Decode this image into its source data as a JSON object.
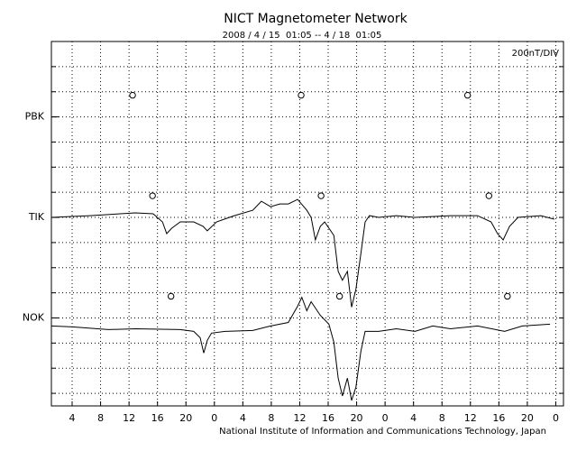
{
  "chart_data": {
    "type": "stacked-traces",
    "title": "NICT Magnetometer Network",
    "subtitle": "2008 / 4 / 15  01:05 -- 4 / 18  01:05",
    "scale_label": "200nT/DIV",
    "footer": "National Institute of Information and Communications Technology, Japan",
    "xlim": [
      1.083,
      73.083
    ],
    "xticks": [
      4,
      8,
      12,
      16,
      20,
      {
        "value": 24,
        "label": "0"
      },
      {
        "value": 28,
        "label": "4"
      },
      {
        "value": 32,
        "label": "8"
      },
      {
        "value": 36,
        "label": "12"
      },
      {
        "value": 40,
        "label": "16"
      },
      {
        "value": 44,
        "label": "20"
      },
      {
        "value": 48,
        "label": "0"
      },
      {
        "value": 52,
        "label": "4"
      },
      {
        "value": 56,
        "label": "8"
      },
      {
        "value": 60,
        "label": "12"
      },
      {
        "value": 64,
        "label": "16"
      },
      {
        "value": 68,
        "label": "20"
      },
      {
        "value": 72,
        "label": "0"
      }
    ],
    "ylim": [
      -700,
      2200
    ],
    "ygrid": [
      -600,
      -400,
      -200,
      0,
      200,
      400,
      600,
      800,
      1000,
      1200,
      1400,
      1600,
      1800,
      2000
    ],
    "grid": true,
    "color": "#000000",
    "series": [
      {
        "name": "PBK",
        "offset": 1600,
        "markers": [
          12.5,
          36.2,
          59.6
        ]
      },
      {
        "name": "TIK",
        "offset": 800,
        "markers": [
          15.3,
          39.0,
          62.6
        ],
        "x": [
          1.1,
          6.5,
          12.9,
          15.4,
          16.7,
          17.3,
          18.0,
          19.2,
          21.1,
          22.4,
          23.0,
          24.3,
          26.8,
          29.4,
          30.6,
          31.9,
          33.2,
          34.4,
          35.7,
          37.0,
          37.6,
          38.2,
          38.9,
          39.5,
          40.8,
          41.4,
          42.0,
          42.7,
          43.3,
          43.9,
          44.6,
          45.2,
          45.8,
          47.1,
          49.6,
          52.2,
          57.2,
          61.0,
          62.9,
          63.8,
          64.6,
          65.5,
          66.7,
          69.9,
          71.8
        ],
        "values": [
          0,
          14,
          36,
          29,
          -36,
          -129,
          -86,
          -36,
          -36,
          -71,
          -107,
          -36,
          14,
          57,
          129,
          86,
          107,
          107,
          143,
          57,
          0,
          -179,
          -71,
          -36,
          -143,
          -429,
          -500,
          -429,
          -714,
          -571,
          -286,
          -36,
          14,
          0,
          14,
          0,
          14,
          14,
          -36,
          -129,
          -179,
          -71,
          0,
          14,
          -14
        ]
      },
      {
        "name": "NOK",
        "offset": 0,
        "markers": [
          17.9,
          41.6,
          65.2
        ],
        "x": [
          1.1,
          4.0,
          9.1,
          12.9,
          19.2,
          21.1,
          22.0,
          22.5,
          23.0,
          23.6,
          25.5,
          29.4,
          31.9,
          34.4,
          35.7,
          36.3,
          37.0,
          37.6,
          38.9,
          40.1,
          40.8,
          41.4,
          42.0,
          42.7,
          43.3,
          43.9,
          44.6,
          45.2,
          47.1,
          49.6,
          52.2,
          54.7,
          57.2,
          61.0,
          64.8,
          67.3,
          71.2
        ],
        "values": [
          -64,
          -71,
          -93,
          -86,
          -93,
          -107,
          -157,
          -279,
          -179,
          -121,
          -107,
          -100,
          -64,
          -36,
          93,
          164,
          57,
          129,
          21,
          -50,
          -193,
          -479,
          -621,
          -479,
          -657,
          -550,
          -264,
          -107,
          -107,
          -86,
          -107,
          -64,
          -86,
          -64,
          -107,
          -64,
          -50
        ]
      }
    ]
  }
}
